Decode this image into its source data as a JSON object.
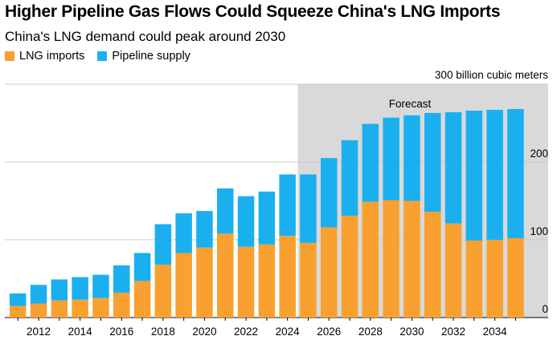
{
  "chart_data": {
    "type": "bar",
    "stacked": true,
    "title": "Higher Pipeline Gas Flows Could Squeeze China's LNG Imports",
    "subtitle": "China's LNG demand could peak around 2030",
    "unit_label": "300 billion cubic meters",
    "forecast_label": "Forecast",
    "forecast_start_year": 2025,
    "ylim": [
      0,
      300
    ],
    "y_ticks": [
      "0",
      "100",
      "200"
    ],
    "x_ticks": [
      "2012",
      "2014",
      "2016",
      "2018",
      "2020",
      "2022",
      "2024",
      "2026",
      "2028",
      "2030",
      "2032",
      "2034"
    ],
    "categories": [
      2011,
      2012,
      2013,
      2014,
      2015,
      2016,
      2017,
      2018,
      2019,
      2020,
      2021,
      2022,
      2023,
      2024,
      2025,
      2026,
      2027,
      2028,
      2029,
      2030,
      2031,
      2032,
      2033,
      2034,
      2035
    ],
    "series": [
      {
        "name": "LNG imports",
        "color": "#f8a030",
        "values": [
          15,
          18,
          22,
          23,
          25,
          32,
          47,
          68,
          83,
          90,
          108,
          91,
          94,
          105,
          96,
          116,
          131,
          149,
          151,
          150,
          136,
          121,
          99,
          100,
          102
        ]
      },
      {
        "name": "Pipeline supply",
        "color": "#1ab0f0",
        "values": [
          16,
          24,
          27,
          29,
          30,
          35,
          36,
          52,
          51,
          47,
          58,
          65,
          68,
          79,
          88,
          89,
          97,
          100,
          106,
          110,
          127,
          143,
          167,
          167,
          166
        ]
      }
    ]
  }
}
